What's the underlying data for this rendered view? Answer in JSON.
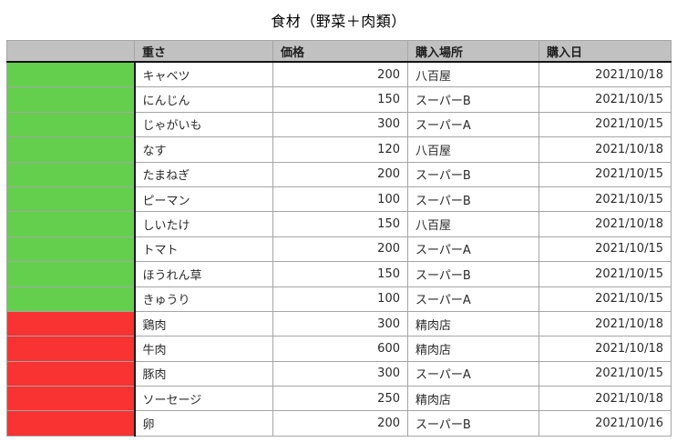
{
  "title": "食材（野菜＋肉類）",
  "colors": {
    "header_bg": "#c1c1c1",
    "vegetable": "#63cf4d",
    "meat": "#f93232",
    "grid_border": "#a5a5a5",
    "divider_dark": "#141414"
  },
  "table": {
    "headers": [
      "",
      "重さ",
      "価格",
      "購入場所",
      "購入日"
    ],
    "rows": [
      {
        "category": "vegetable",
        "name": "キャベツ",
        "price": "200",
        "place": "八百屋",
        "date": "2021/10/18"
      },
      {
        "category": "vegetable",
        "name": "にんじん",
        "price": "150",
        "place": "スーパーB",
        "date": "2021/10/15"
      },
      {
        "category": "vegetable",
        "name": "じゃがいも",
        "price": "300",
        "place": "スーパーA",
        "date": "2021/10/15"
      },
      {
        "category": "vegetable",
        "name": "なす",
        "price": "120",
        "place": "八百屋",
        "date": "2021/10/18"
      },
      {
        "category": "vegetable",
        "name": "たまねぎ",
        "price": "200",
        "place": "スーパーB",
        "date": "2021/10/15"
      },
      {
        "category": "vegetable",
        "name": "ピーマン",
        "price": "100",
        "place": "スーパーB",
        "date": "2021/10/15"
      },
      {
        "category": "vegetable",
        "name": "しいたけ",
        "price": "150",
        "place": "八百屋",
        "date": "2021/10/18"
      },
      {
        "category": "vegetable",
        "name": "トマト",
        "price": "200",
        "place": "スーパーA",
        "date": "2021/10/15"
      },
      {
        "category": "vegetable",
        "name": "ほうれん草",
        "price": "150",
        "place": "スーパーB",
        "date": "2021/10/15"
      },
      {
        "category": "vegetable",
        "name": "きゅうり",
        "price": "100",
        "place": "スーパーA",
        "date": "2021/10/15"
      },
      {
        "category": "meat",
        "name": "鶏肉",
        "price": "300",
        "place": "精肉店",
        "date": "2021/10/18"
      },
      {
        "category": "meat",
        "name": "牛肉",
        "price": "600",
        "place": "精肉店",
        "date": "2021/10/18"
      },
      {
        "category": "meat",
        "name": "豚肉",
        "price": "300",
        "place": "スーパーA",
        "date": "2021/10/15"
      },
      {
        "category": "meat",
        "name": "ソーセージ",
        "price": "250",
        "place": "精肉店",
        "date": "2021/10/18"
      },
      {
        "category": "meat",
        "name": "卵",
        "price": "200",
        "place": "スーパーB",
        "date": "2021/10/16"
      }
    ]
  }
}
